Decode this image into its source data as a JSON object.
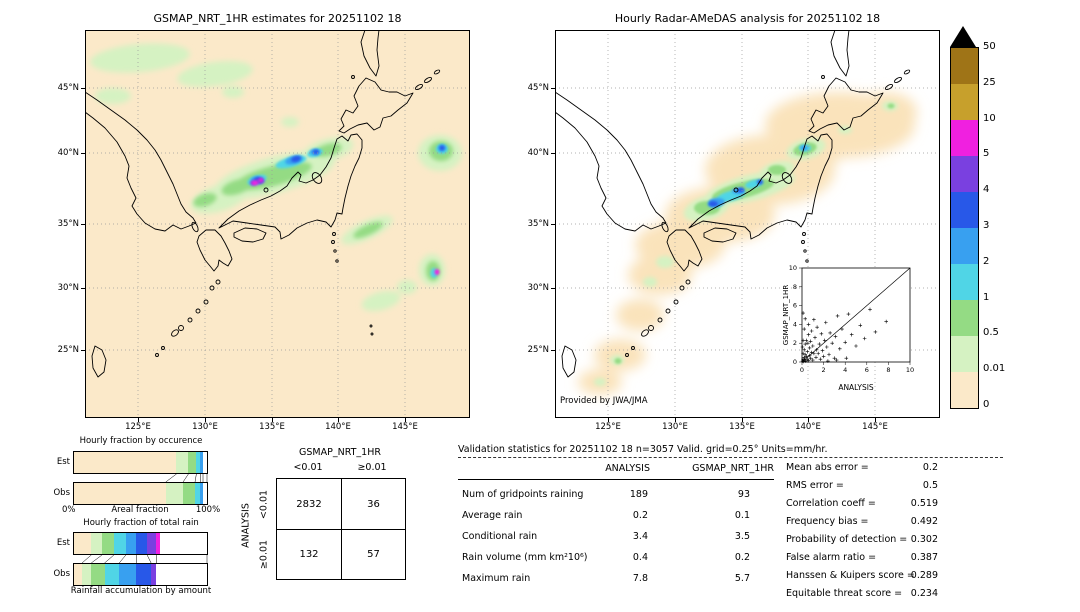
{
  "chart_data": [
    {
      "id": "gsmap_estimates_map",
      "type": "heatmap",
      "title": "GSMAP_NRT_1HR estimates for 20251102 18",
      "lat_ticks": [
        "45°N",
        "40°N",
        "35°N",
        "30°N",
        "25°N"
      ],
      "lon_ticks": [
        "125°E",
        "130°E",
        "135°E",
        "140°E",
        "145°E"
      ],
      "units": "mm/hr",
      "background_value_color": "#fbe9c9"
    },
    {
      "id": "radar_amedas_map",
      "type": "heatmap",
      "title": "Hourly Radar-AMeDAS analysis for 20251102 18",
      "lat_ticks": [
        "45°N",
        "40°N",
        "35°N",
        "30°N",
        "25°N"
      ],
      "lon_ticks": [
        "125°E",
        "130°E",
        "135°E",
        "140°E",
        "145°E"
      ],
      "credit": "Provided by JWA/JMA"
    },
    {
      "id": "colorbar",
      "type": "heatmap",
      "units": "mm/hr",
      "tick_labels": [
        "50",
        "25",
        "10",
        "5",
        "4",
        "3",
        "2",
        "1",
        "0.5",
        "0.01",
        "0"
      ],
      "colors_top_to_bottom": [
        "#9f7417",
        "#c7a02c",
        "#f020e0",
        "#7a40e0",
        "#2858e8",
        "#38a0f0",
        "#50d5e6",
        "#94db84",
        "#d5f2c2",
        "#fbe9c9"
      ],
      "overflow_color": "#000000"
    },
    {
      "id": "hourly_fraction_by_occurrence",
      "type": "bar",
      "title": "Hourly fraction by occurence",
      "xlabel": "Areal fraction",
      "x_min_label": "0%",
      "x_max_label": "100%",
      "series": [
        {
          "name": "Est",
          "segments": [
            [
              "#fbe9c9",
              77
            ],
            [
              "#d5f2c2",
              9
            ],
            [
              "#94db84",
              6
            ],
            [
              "#50d5e6",
              3
            ],
            [
              "#38a0f0",
              2
            ],
            [
              "#ffffff",
              3
            ]
          ]
        },
        {
          "name": "Obs",
          "segments": [
            [
              "#fbe9c9",
              69
            ],
            [
              "#d5f2c2",
              13
            ],
            [
              "#94db84",
              9
            ],
            [
              "#50d5e6",
              4
            ],
            [
              "#38a0f0",
              2
            ],
            [
              "#ffffff",
              3
            ]
          ]
        }
      ]
    },
    {
      "id": "hourly_fraction_of_total_rain",
      "type": "bar",
      "title": "Hourly fraction of total rain",
      "caption": "Rainfall accumulation by amount",
      "series": [
        {
          "name": "Est",
          "segments": [
            [
              "#fbe9c9",
              13
            ],
            [
              "#d5f2c2",
              8
            ],
            [
              "#94db84",
              9
            ],
            [
              "#50d5e6",
              9
            ],
            [
              "#38a0f0",
              8
            ],
            [
              "#2858e8",
              8
            ],
            [
              "#7a40e0",
              7
            ],
            [
              "#f020e0",
              3
            ],
            [
              "#ffffff",
              35
            ]
          ]
        },
        {
          "name": "Obs",
          "segments": [
            [
              "#fbe9c9",
              6
            ],
            [
              "#d5f2c2",
              7
            ],
            [
              "#94db84",
              10
            ],
            [
              "#50d5e6",
              11
            ],
            [
              "#38a0f0",
              13
            ],
            [
              "#2858e8",
              11
            ],
            [
              "#7a40e0",
              4
            ],
            [
              "#ffffff",
              38
            ]
          ]
        }
      ]
    },
    {
      "id": "contingency_table",
      "type": "table",
      "title": "GSMAP_NRT_1HR",
      "col_headers": [
        "<0.01",
        "≥0.01"
      ],
      "row_axis_label": "ANALYSIS",
      "row_headers": [
        "<0.01",
        "≥0.01"
      ],
      "values": [
        [
          "2832",
          "36"
        ],
        [
          "132",
          "57"
        ]
      ]
    },
    {
      "id": "validation_statistics",
      "type": "table",
      "title": "Validation statistics for 20251102 18  n=3057 Valid. grid=0.25° Units=mm/hr.",
      "columns": [
        "ANALYSIS",
        "GSMAP_NRT_1HR"
      ],
      "rows": [
        {
          "label": "Num of gridpoints raining",
          "values": [
            "189",
            "93"
          ]
        },
        {
          "label": "Average rain",
          "values": [
            "0.2",
            "0.1"
          ]
        },
        {
          "label": "Conditional rain",
          "values": [
            "3.4",
            "3.5"
          ]
        },
        {
          "label": "Rain volume (mm km²10⁶)",
          "values": [
            "0.4",
            "0.2"
          ]
        },
        {
          "label": "Maximum rain",
          "values": [
            "7.8",
            "5.7"
          ]
        }
      ],
      "stats": [
        {
          "label": "Mean abs error =",
          "value": "0.2"
        },
        {
          "label": "RMS error =",
          "value": "0.5"
        },
        {
          "label": "Correlation coeff =",
          "value": "0.519"
        },
        {
          "label": "Frequency bias =",
          "value": "0.492"
        },
        {
          "label": "Probability of detection =",
          "value": "0.302"
        },
        {
          "label": "False alarm ratio =",
          "value": "0.387"
        },
        {
          "label": "Hanssen & Kuipers score =",
          "value": "0.289"
        },
        {
          "label": "Equitable threat score =",
          "value": "0.234"
        }
      ]
    },
    {
      "id": "inset_scatter",
      "type": "scatter",
      "xlabel": "ANALYSIS",
      "ylabel": "GSMAP_NRT_1HR",
      "xlim": [
        0,
        10
      ],
      "ylim": [
        0,
        10
      ],
      "xticks": [
        0,
        2,
        4,
        6,
        8,
        10
      ],
      "yticks": [
        0,
        2,
        4,
        6,
        8,
        10
      ],
      "points": [
        [
          0.05,
          0.1
        ],
        [
          0.1,
          0.3
        ],
        [
          0.1,
          0.9
        ],
        [
          0.15,
          0.05
        ],
        [
          0.2,
          0.5
        ],
        [
          0.2,
          1.3
        ],
        [
          0.25,
          0.2
        ],
        [
          0.3,
          0.8
        ],
        [
          0.3,
          1.9
        ],
        [
          0.35,
          0.1
        ],
        [
          0.4,
          0.6
        ],
        [
          0.4,
          2.3
        ],
        [
          0.5,
          0.3
        ],
        [
          0.5,
          1.1
        ],
        [
          0.55,
          2.0
        ],
        [
          0.6,
          0.15
        ],
        [
          0.6,
          2.9
        ],
        [
          0.7,
          0.7
        ],
        [
          0.7,
          1.5
        ],
        [
          0.8,
          0.4
        ],
        [
          0.8,
          2.2
        ],
        [
          0.9,
          1.0
        ],
        [
          0.9,
          3.3
        ],
        [
          1.0,
          0.2
        ],
        [
          1.0,
          1.7
        ],
        [
          1.1,
          0.9
        ],
        [
          1.2,
          2.6
        ],
        [
          1.3,
          0.5
        ],
        [
          1.35,
          1.3
        ],
        [
          1.4,
          3.7
        ],
        [
          1.5,
          0.9
        ],
        [
          1.6,
          1.9
        ],
        [
          1.7,
          0.3
        ],
        [
          1.8,
          3.0
        ],
        [
          1.9,
          1.2
        ],
        [
          2.0,
          0.6
        ],
        [
          2.1,
          2.3
        ],
        [
          2.2,
          4.2
        ],
        [
          2.3,
          1.6
        ],
        [
          2.5,
          0.8
        ],
        [
          2.6,
          3.1
        ],
        [
          2.8,
          2.0
        ],
        [
          3.0,
          0.4
        ],
        [
          3.1,
          2.7
        ],
        [
          3.3,
          4.9
        ],
        [
          3.5,
          1.4
        ],
        [
          3.7,
          3.5
        ],
        [
          4.0,
          2.1
        ],
        [
          4.3,
          5.1
        ],
        [
          4.6,
          2.9
        ],
        [
          5.0,
          1.7
        ],
        [
          5.4,
          3.9
        ],
        [
          5.8,
          2.5
        ],
        [
          6.3,
          5.6
        ],
        [
          6.8,
          3.2
        ],
        [
          7.8,
          4.3
        ],
        [
          0.1,
          2.3
        ],
        [
          0.2,
          3.5
        ],
        [
          0.3,
          4.6
        ],
        [
          0.1,
          5.2
        ],
        [
          2.4,
          0.1
        ],
        [
          3.2,
          0.2
        ],
        [
          4.1,
          0.4
        ],
        [
          0.05,
          1.6
        ],
        [
          1.1,
          4.5
        ],
        [
          0.6,
          4.0
        ]
      ]
    }
  ]
}
